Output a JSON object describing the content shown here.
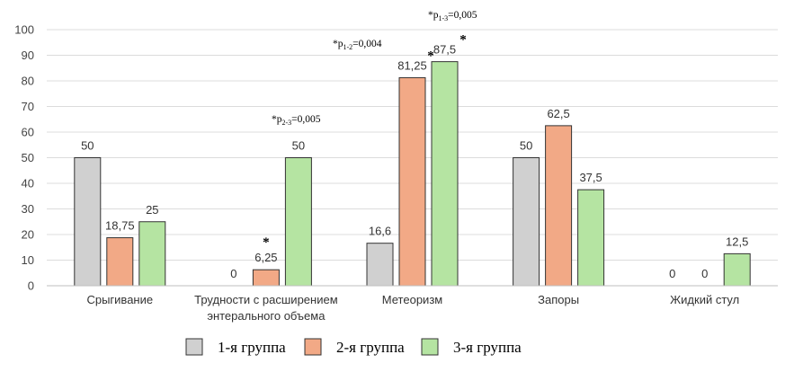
{
  "chart_data": {
    "type": "bar",
    "title": "",
    "xlabel": "",
    "ylabel": "",
    "ylim": [
      0,
      100
    ],
    "yticks": [
      0,
      10,
      20,
      30,
      40,
      50,
      60,
      70,
      80,
      90,
      100
    ],
    "grid": true,
    "legend_position": "bottom",
    "categories": [
      [
        "Срыгивание"
      ],
      [
        "Трудности с расширением",
        "энтерального объема"
      ],
      [
        "Метеоризм"
      ],
      [
        "Запоры"
      ],
      [
        "Жидкий стул"
      ]
    ],
    "series": [
      {
        "name": "1-я группа",
        "color": "#d0d0d0",
        "values": [
          50,
          0,
          16.6,
          50,
          0
        ],
        "labels": [
          "50",
          "0",
          "16,6",
          "50",
          "0"
        ]
      },
      {
        "name": "2-я группа",
        "color": "#f2a986",
        "values": [
          18.75,
          6.25,
          81.25,
          62.5,
          0
        ],
        "labels": [
          "18,75",
          "6,25",
          "81,25",
          "62,5",
          "0"
        ]
      },
      {
        "name": "3-я группа",
        "color": "#b5e4a2",
        "values": [
          25,
          50,
          87.5,
          37.5,
          12.5
        ],
        "labels": [
          "25",
          "50",
          "87,5",
          "37,5",
          "12,5"
        ]
      }
    ],
    "annotations": [
      {
        "label": "*p",
        "sub": "2-3",
        "tail": "=0,005",
        "category": 1
      },
      {
        "label": "*p",
        "sub": "1-2",
        "tail": "=0,004",
        "category": 2
      },
      {
        "label": "*p",
        "sub": "1-3",
        "tail": "=0,005",
        "category": 2
      }
    ],
    "stars": [
      {
        "category": 1,
        "series": 1
      },
      {
        "category": 2,
        "series": 1
      },
      {
        "category": 2,
        "series": 2
      }
    ]
  }
}
